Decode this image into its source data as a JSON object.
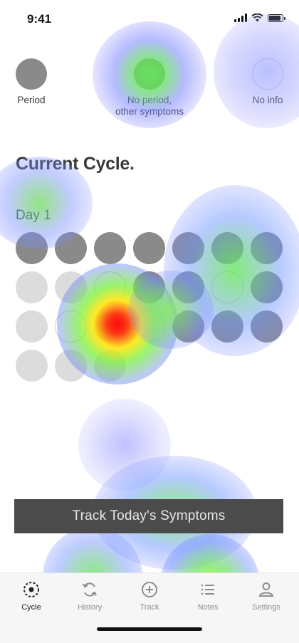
{
  "status_bar": {
    "time": "9:41"
  },
  "legend": [
    {
      "label": "Period",
      "kind": "period"
    },
    {
      "label": "No period,\nother symptoms",
      "kind": "symptoms"
    },
    {
      "label": "No info",
      "kind": "noinfo"
    }
  ],
  "section_title": "Current Cycle.",
  "day_label": "Day 1",
  "cycle_days": [
    [
      "period",
      "period",
      "period",
      "period",
      "period",
      "symptoms",
      "symptoms"
    ],
    [
      "noinfo",
      "noinfo",
      "empty",
      "symptoms",
      "symptoms",
      "empty",
      "symptoms"
    ],
    [
      "noinfo",
      "empty",
      "noinfo",
      "empty",
      "symptoms",
      "symptoms",
      "symptoms"
    ],
    [
      "noinfo",
      "noinfo",
      "noinfo"
    ]
  ],
  "colors": {
    "period": "#8a8a8a",
    "noinfo": "#dcdcdc",
    "button": "#4b4b4b"
  },
  "track_button_label": "Track Today's Symptoms",
  "tabs": [
    {
      "label": "Cycle",
      "icon": "cycle-icon",
      "active": true
    },
    {
      "label": "History",
      "icon": "history-icon",
      "active": false
    },
    {
      "label": "Track",
      "icon": "plus-circle-icon",
      "active": false
    },
    {
      "label": "Notes",
      "icon": "notes-list-icon",
      "active": false
    },
    {
      "label": "Settings",
      "icon": "person-icon",
      "active": false
    }
  ]
}
